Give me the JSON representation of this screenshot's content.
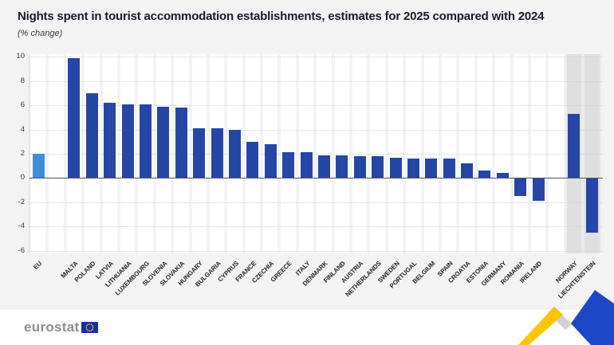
{
  "chart_data": {
    "type": "bar",
    "title": "Nights spent in tourist accommodation establishments, estimates for 2025 compared with 2024",
    "subtitle": "(% change)",
    "xlabel": "",
    "ylabel": "",
    "ylim": [
      -6,
      10
    ],
    "yticks": [
      10,
      8,
      6,
      4,
      2,
      0,
      -2,
      -4,
      -6
    ],
    "grid": true,
    "legend": "none",
    "bars": [
      {
        "label": "EU",
        "value": 2.0,
        "group": "eu"
      },
      {
        "label": "MALTA",
        "value": 9.9,
        "group": "member"
      },
      {
        "label": "POLAND",
        "value": 7.0,
        "group": "member"
      },
      {
        "label": "LATVIA",
        "value": 6.2,
        "group": "member"
      },
      {
        "label": "LITHUANIA",
        "value": 6.1,
        "group": "member"
      },
      {
        "label": "LUXEMBOURG",
        "value": 6.1,
        "group": "member"
      },
      {
        "label": "SLOVENIA",
        "value": 5.9,
        "group": "member"
      },
      {
        "label": "SLOVAKIA",
        "value": 5.8,
        "group": "member"
      },
      {
        "label": "HUNGARY",
        "value": 4.1,
        "group": "member"
      },
      {
        "label": "BULGARIA",
        "value": 4.1,
        "group": "member"
      },
      {
        "label": "CYPRUS",
        "value": 4.0,
        "group": "member"
      },
      {
        "label": "FRANCE",
        "value": 3.0,
        "group": "member"
      },
      {
        "label": "CZECHIA",
        "value": 2.8,
        "group": "member"
      },
      {
        "label": "GREECE",
        "value": 2.1,
        "group": "member"
      },
      {
        "label": "ITALY",
        "value": 2.1,
        "group": "member"
      },
      {
        "label": "DENMARK",
        "value": 1.9,
        "group": "member"
      },
      {
        "label": "FINLAND",
        "value": 1.9,
        "group": "member"
      },
      {
        "label": "AUSTRIA",
        "value": 1.8,
        "group": "member"
      },
      {
        "label": "NETHERLANDS",
        "value": 1.8,
        "group": "member"
      },
      {
        "label": "SWEDEN",
        "value": 1.7,
        "group": "member"
      },
      {
        "label": "PORTUGAL",
        "value": 1.6,
        "group": "member"
      },
      {
        "label": "BELGIUM",
        "value": 1.6,
        "group": "member"
      },
      {
        "label": "SPAIN",
        "value": 1.6,
        "group": "member"
      },
      {
        "label": "CROATIA",
        "value": 1.2,
        "group": "member"
      },
      {
        "label": "ESTONIA",
        "value": 0.6,
        "group": "member"
      },
      {
        "label": "GERMANY",
        "value": 0.4,
        "group": "member"
      },
      {
        "label": "ROMANIA",
        "value": -1.5,
        "group": "member"
      },
      {
        "label": "IRELAND",
        "value": -1.9,
        "group": "member"
      },
      {
        "label": "NORWAY",
        "value": 5.3,
        "group": "efta"
      },
      {
        "label": "LIECHTENSTEIN",
        "value": -4.5,
        "group": "efta"
      }
    ]
  },
  "footer": {
    "logo_text": "eurostat"
  },
  "colors": {
    "background": "#f3f3f3",
    "member_bar": "#2646a6",
    "eu_bar": "#3f8ddd",
    "efta_stripe": "#dfdfdf",
    "column_stripe": "#ffffff",
    "gridline": "#cfcfd4",
    "zero_line": "#54546a",
    "title_text": "#1a1a2e",
    "flag_blue": "#15309f",
    "flag_stars": "#ffd420",
    "deco_yellow": "#fdc400",
    "deco_blue": "#1e47c8",
    "deco_gray": "#d0d0d4"
  }
}
